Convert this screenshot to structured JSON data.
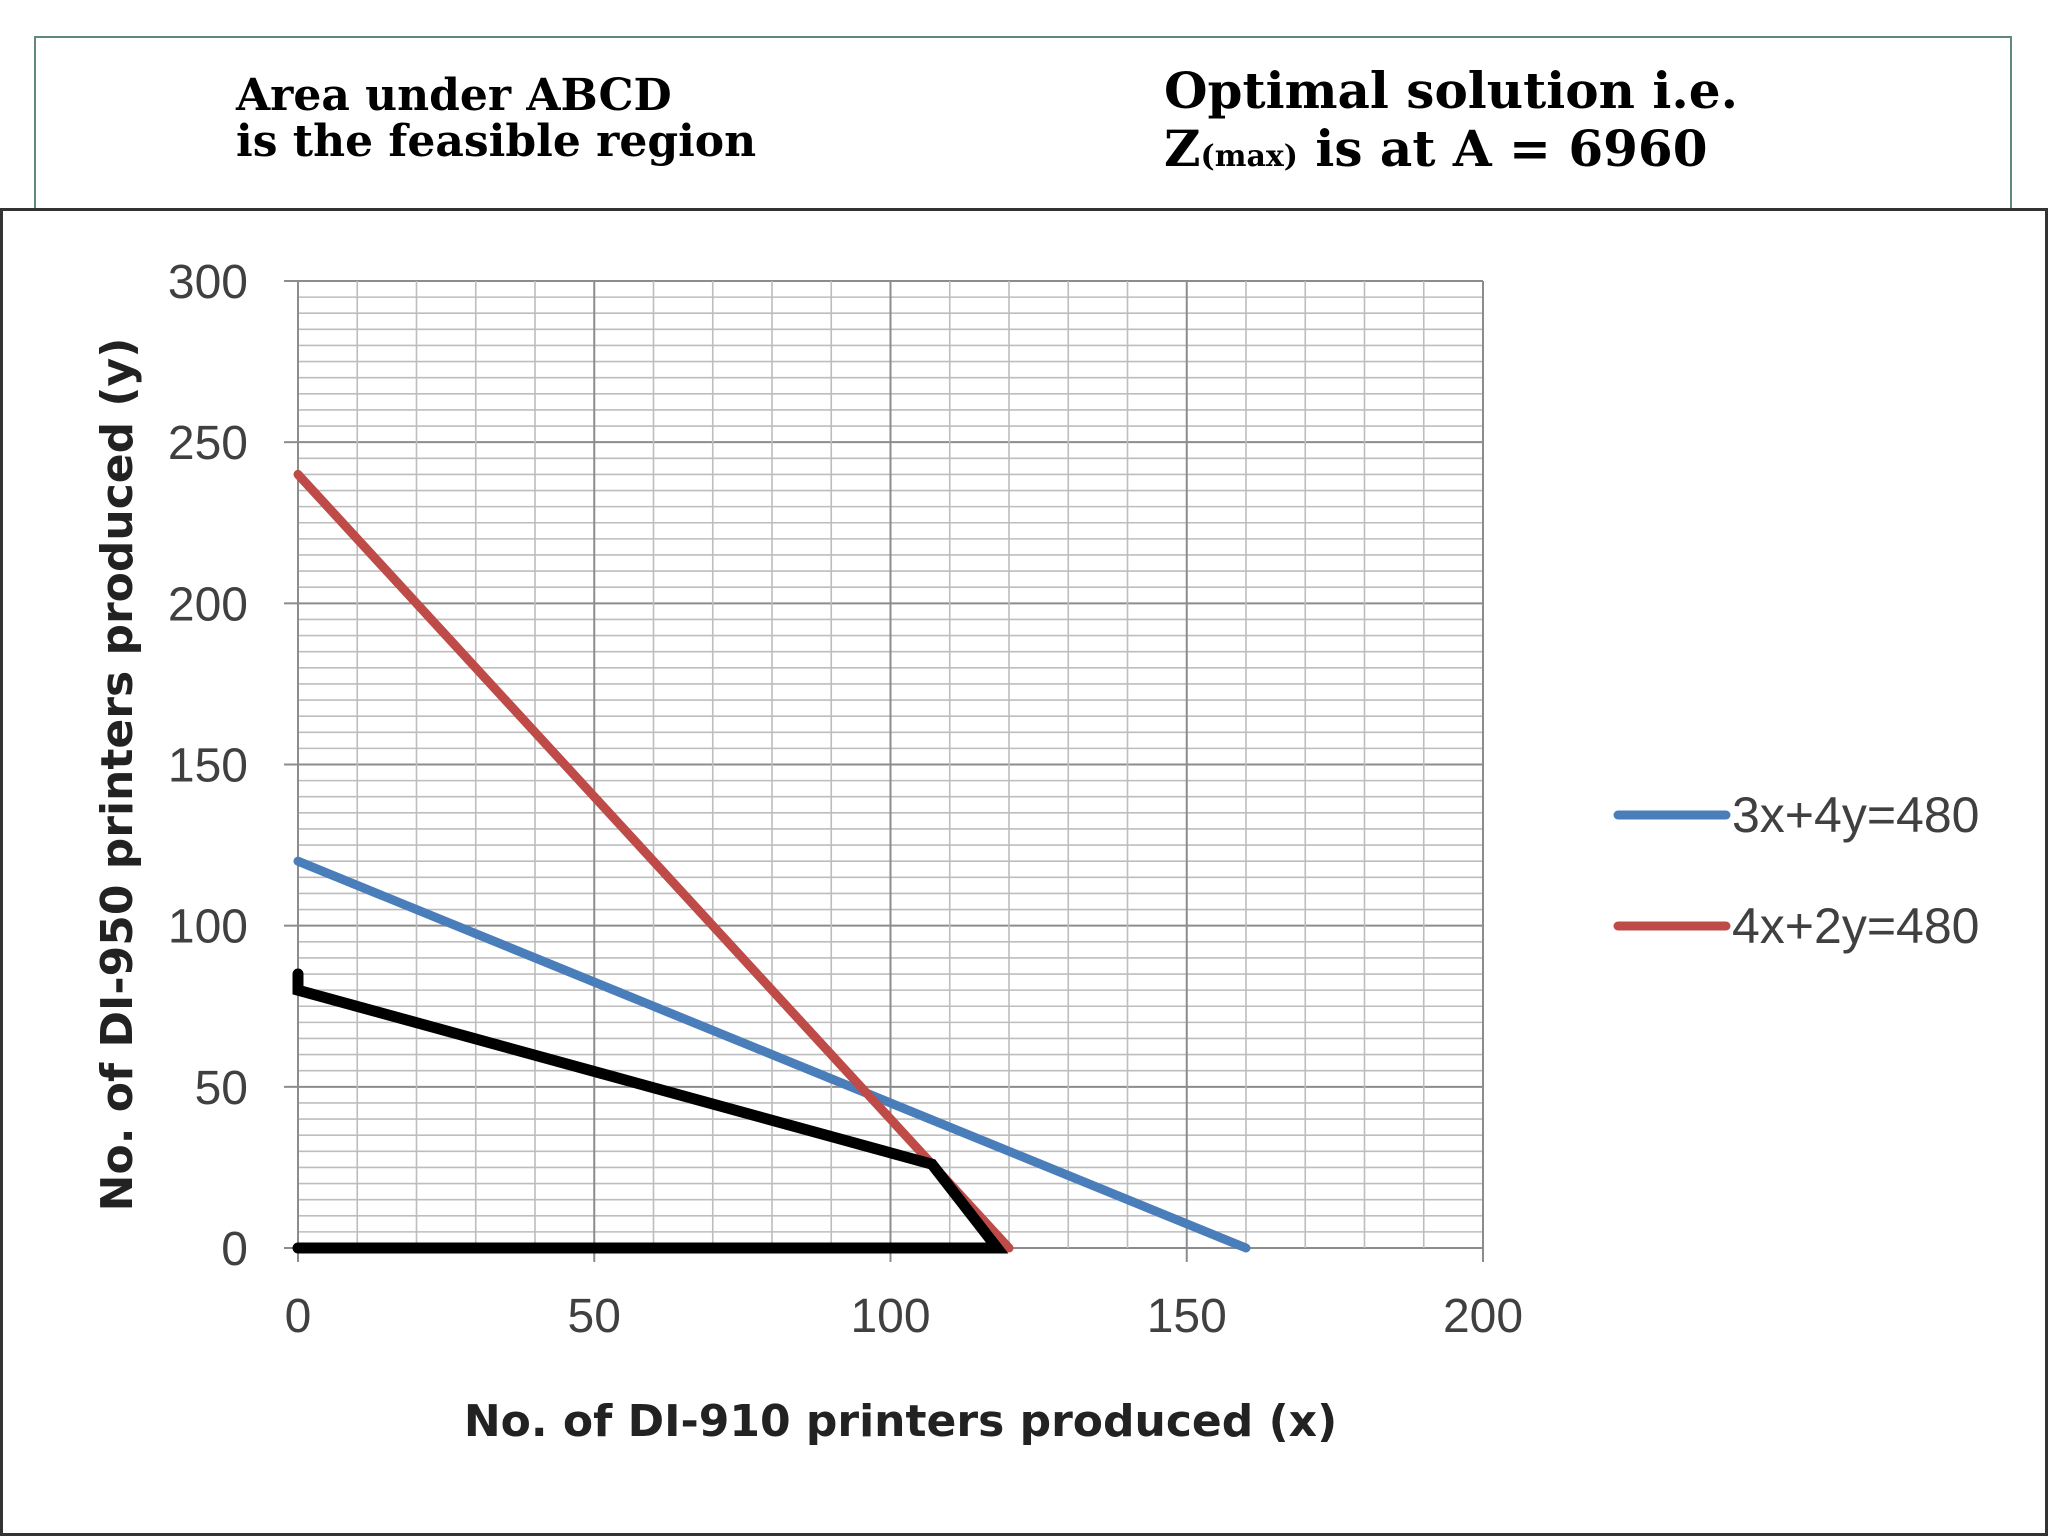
{
  "header": {
    "left_line1": "Area under ABCD",
    "left_line2": "is the feasible region",
    "right_line1": "Optimal solution i.e.",
    "right_z": "Z",
    "right_sub": "(max)",
    "right_rest": " is at A = 6960"
  },
  "chart_data": {
    "type": "line",
    "title": "",
    "xlabel": "No. of DI-910 printers produced (x)",
    "ylabel": "No. of DI-950 printers produced (y)",
    "xlim": [
      0,
      200
    ],
    "ylim": [
      0,
      300
    ],
    "xticks": [
      0,
      50,
      100,
      150,
      200
    ],
    "yticks": [
      0,
      50,
      100,
      150,
      200,
      250,
      300
    ],
    "x_minor_step": 10,
    "y_minor_step": 10,
    "grid": true,
    "legend_position": "right",
    "series": [
      {
        "name": "3x+4y=480",
        "color": "#4a7ebb",
        "points": [
          [
            0,
            120
          ],
          [
            160,
            0
          ]
        ]
      },
      {
        "name": "4x+2y=480",
        "color": "#be4b48",
        "points": [
          [
            0,
            240
          ],
          [
            120,
            0
          ]
        ]
      }
    ],
    "feasible_region": {
      "label": "ABCD",
      "color": "#000000",
      "points": [
        [
          0,
          85
        ],
        [
          0,
          80
        ],
        [
          107,
          26
        ],
        [
          118,
          0
        ],
        [
          0,
          0
        ]
      ]
    }
  }
}
